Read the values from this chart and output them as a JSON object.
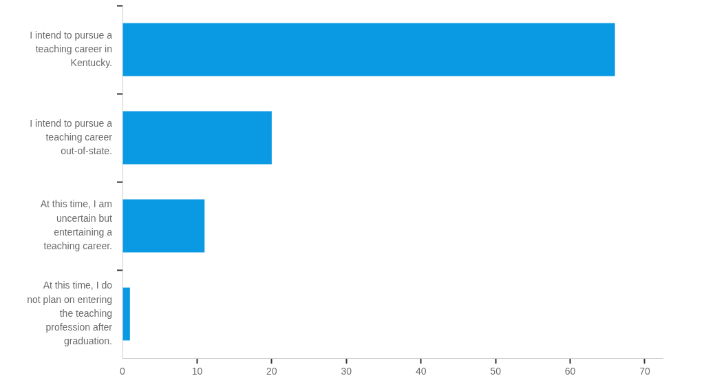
{
  "chart_data": {
    "type": "bar",
    "orientation": "horizontal",
    "categories": [
      "I intend to pursue a teaching career in Kentucky.",
      "I intend to pursue a teaching career out-of-state.",
      "At this time, I am uncertain but entertaining a teaching career.",
      "At this time, I do not plan on entering the teaching profession after graduation."
    ],
    "values": [
      66,
      20,
      11,
      1
    ],
    "color": "#0a9ae3",
    "xlim": [
      0,
      72.4
    ],
    "xticks": [
      0,
      10,
      20,
      30,
      40,
      50,
      60,
      70
    ]
  }
}
